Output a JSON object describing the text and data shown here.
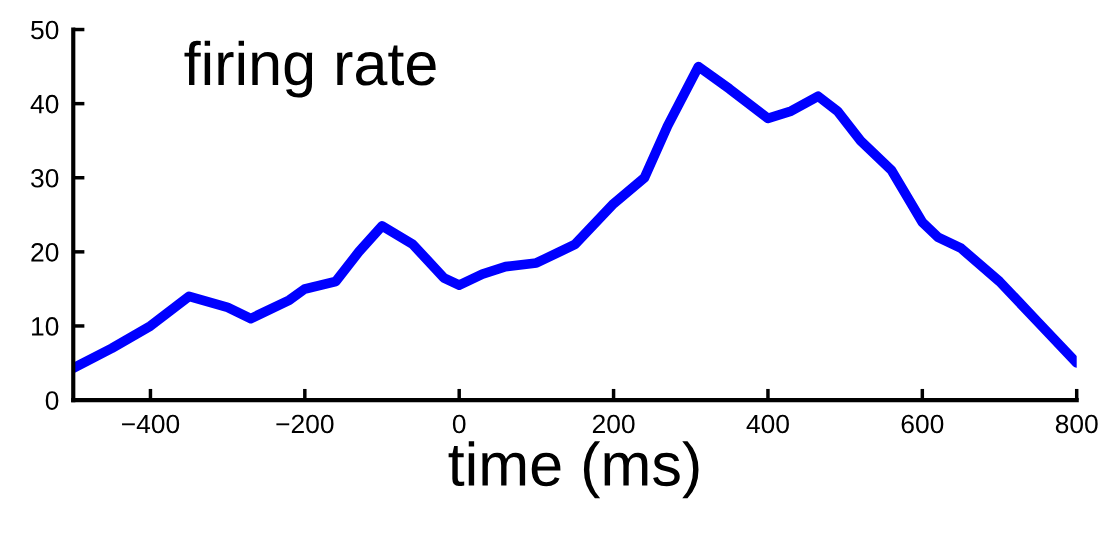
{
  "chart_data": {
    "type": "line",
    "title": "firing rate",
    "xlabel": "time (ms)",
    "x": [
      -500,
      -450,
      -400,
      -350,
      -300,
      -270,
      -220,
      -200,
      -160,
      -130,
      -100,
      -60,
      -20,
      0,
      30,
      60,
      100,
      150,
      200,
      240,
      270,
      310,
      350,
      400,
      430,
      465,
      490,
      520,
      560,
      600,
      620,
      650,
      700,
      750,
      800
    ],
    "series": [
      {
        "color": "#0000ff",
        "values": [
          4.3,
          7,
          10,
          14,
          12.5,
          11,
          13.5,
          15,
          16,
          20,
          23.5,
          21,
          16.5,
          15.5,
          17,
          18,
          18.5,
          21,
          26.5,
          30,
          37,
          45,
          42,
          38,
          39,
          41,
          39,
          35,
          31,
          24,
          22,
          20.5,
          16,
          10.5,
          5
        ]
      }
    ],
    "xlim": [
      -500,
      800
    ],
    "ylim": [
      0,
      50
    ],
    "xticks": [
      {
        "value": -400,
        "label": "−400"
      },
      {
        "value": -200,
        "label": "−200"
      },
      0,
      200,
      400,
      600,
      800
    ],
    "yticks": [
      0,
      10,
      20,
      30,
      40,
      50
    ],
    "grid": false,
    "legend": false,
    "marker": "none",
    "line_style": "solid"
  }
}
